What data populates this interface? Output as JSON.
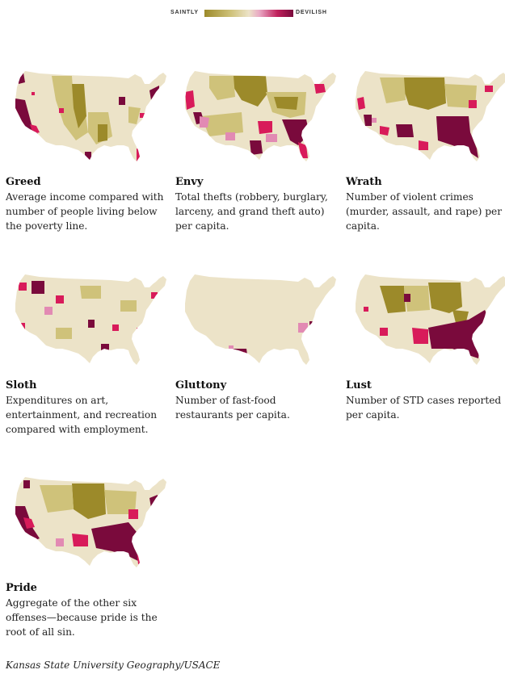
{
  "legend": {
    "low_label": "SAINTLY",
    "high_label": "DEVILISH",
    "colors": [
      "#9c8a2a",
      "#cfc27a",
      "#ece3c8",
      "#e9a8c4",
      "#c0215c",
      "#7a0a3c"
    ]
  },
  "map_colors": {
    "base": "#ece3c8",
    "saintly_dark": "#9c8a2a",
    "saintly_light": "#cfc27a",
    "pink": "#e28ab3",
    "red": "#d81b5a",
    "devilish": "#7a0a3c"
  },
  "maps": [
    {
      "key": "greed",
      "title": "Greed",
      "lines": [
        "Average income compared with",
        "number of people living below",
        "the poverty line."
      ]
    },
    {
      "key": "envy",
      "title": "Envy",
      "lines": [
        "Total thefts (robbery, burglary,",
        "larceny, and grand theft auto)",
        "per capita."
      ]
    },
    {
      "key": "wrath",
      "title": "Wrath",
      "lines": [
        "Number of violent crimes",
        "(murder, assault, and rape) per",
        "capita."
      ]
    },
    {
      "key": "sloth",
      "title": "Sloth",
      "lines": [
        "Expenditures on art,",
        "entertainment, and recreation",
        "compared with employment."
      ]
    },
    {
      "key": "gluttony",
      "title": "Gluttony",
      "lines": [
        "Number of fast-food",
        "restaurants per capita."
      ]
    },
    {
      "key": "lust",
      "title": "Lust",
      "lines": [
        "Number of STD cases reported",
        "per capita."
      ]
    },
    {
      "key": "pride",
      "title": "Pride",
      "lines": [
        "Aggregate of the other six",
        "offenses—because pride is the",
        "root of all sin."
      ]
    }
  ],
  "credit": "Kansas State University Geography/USACE"
}
